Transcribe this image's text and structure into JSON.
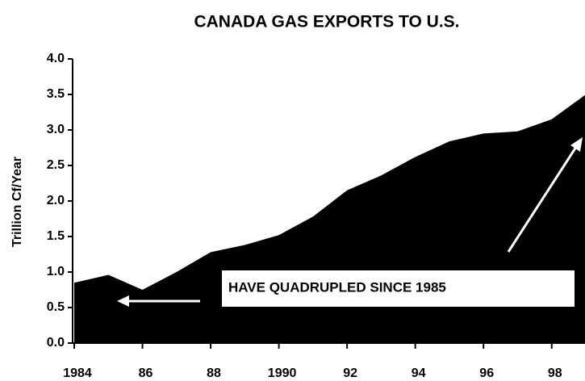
{
  "chart_data": {
    "type": "area",
    "title": "CANADA GAS EXPORTS TO U.S.",
    "y_label": "Trillion Cf/Year",
    "annotation": "HAVE QUADRUPLED SINCE 1985",
    "x": [
      1984,
      1985,
      1986,
      1987,
      1988,
      1989,
      1990,
      1991,
      1992,
      1993,
      1994,
      1995,
      1996,
      1997,
      1998,
      1999
    ],
    "series": [
      {
        "name": "Exports",
        "color": "#000000",
        "values": [
          0.85,
          0.96,
          0.75,
          1.0,
          1.28,
          1.38,
          1.52,
          1.78,
          2.15,
          2.36,
          2.62,
          2.84,
          2.95,
          2.98,
          3.15,
          3.5
        ]
      }
    ],
    "xlim": [
      1984,
      1999
    ],
    "xticks": [
      1984,
      {
        "value": 1986,
        "label": "86"
      },
      {
        "value": 1988,
        "label": "88"
      },
      1990,
      {
        "value": 1992,
        "label": "92"
      },
      {
        "value": 1994,
        "label": "94"
      },
      {
        "value": 1996,
        "label": "96"
      },
      {
        "value": 1998,
        "label": "98"
      }
    ],
    "ylim": [
      0,
      4
    ],
    "yticks": [
      {
        "value": 0,
        "label": "0.0"
      },
      0.5,
      {
        "value": 1,
        "label": "1.0"
      },
      1.5,
      {
        "value": 2,
        "label": "2.0"
      },
      2.5,
      {
        "value": 3,
        "label": "3.0"
      },
      3.5,
      {
        "value": 4,
        "label": "4.0"
      }
    ],
    "grid": false
  }
}
